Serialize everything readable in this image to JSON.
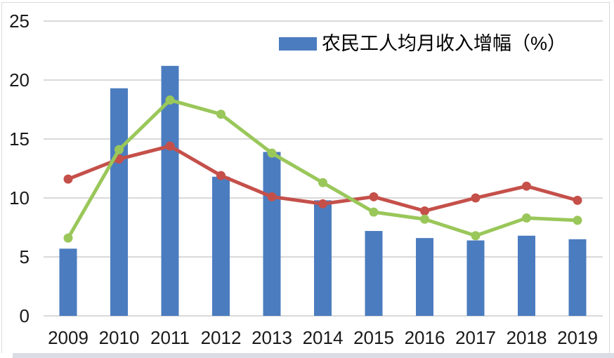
{
  "page": {
    "background": "#ffffff",
    "frame_border_color": "#d9d9d9",
    "bottom_strip_color": "#dadde3"
  },
  "legend": {
    "label": "农民工人均月收入增幅（%）"
  },
  "chart_data": {
    "type": "bar",
    "combo": "bar+line",
    "title": "",
    "xlabel": "",
    "ylabel": "",
    "categories": [
      "2009",
      "2010",
      "2011",
      "2012",
      "2013",
      "2014",
      "2015",
      "2016",
      "2017",
      "2018",
      "2019"
    ],
    "series": [
      {
        "name": "农民工人均月收入增幅（%）",
        "type": "bar",
        "color": "#4b7cbf",
        "in_legend": true,
        "values": [
          5.7,
          19.3,
          21.2,
          11.8,
          13.9,
          9.8,
          7.2,
          6.6,
          6.4,
          6.8,
          6.5
        ]
      },
      {
        "name": "red-line-series",
        "type": "line",
        "color": "#c5504a",
        "in_legend": false,
        "values": [
          11.6,
          13.3,
          14.4,
          11.9,
          10.1,
          9.5,
          10.1,
          8.9,
          10.0,
          11.0,
          9.8
        ]
      },
      {
        "name": "green-line-series",
        "type": "line",
        "color": "#9ac75a",
        "in_legend": false,
        "values": [
          6.6,
          14.1,
          18.3,
          17.1,
          13.8,
          11.3,
          8.8,
          8.2,
          6.8,
          8.3,
          8.1
        ]
      }
    ],
    "y_ticks": [
      0,
      5,
      10,
      15,
      20,
      25
    ],
    "ylim": [
      0,
      25
    ],
    "grid": true,
    "gridline_color": "#d9d9d9",
    "legend_position": "top-center"
  }
}
